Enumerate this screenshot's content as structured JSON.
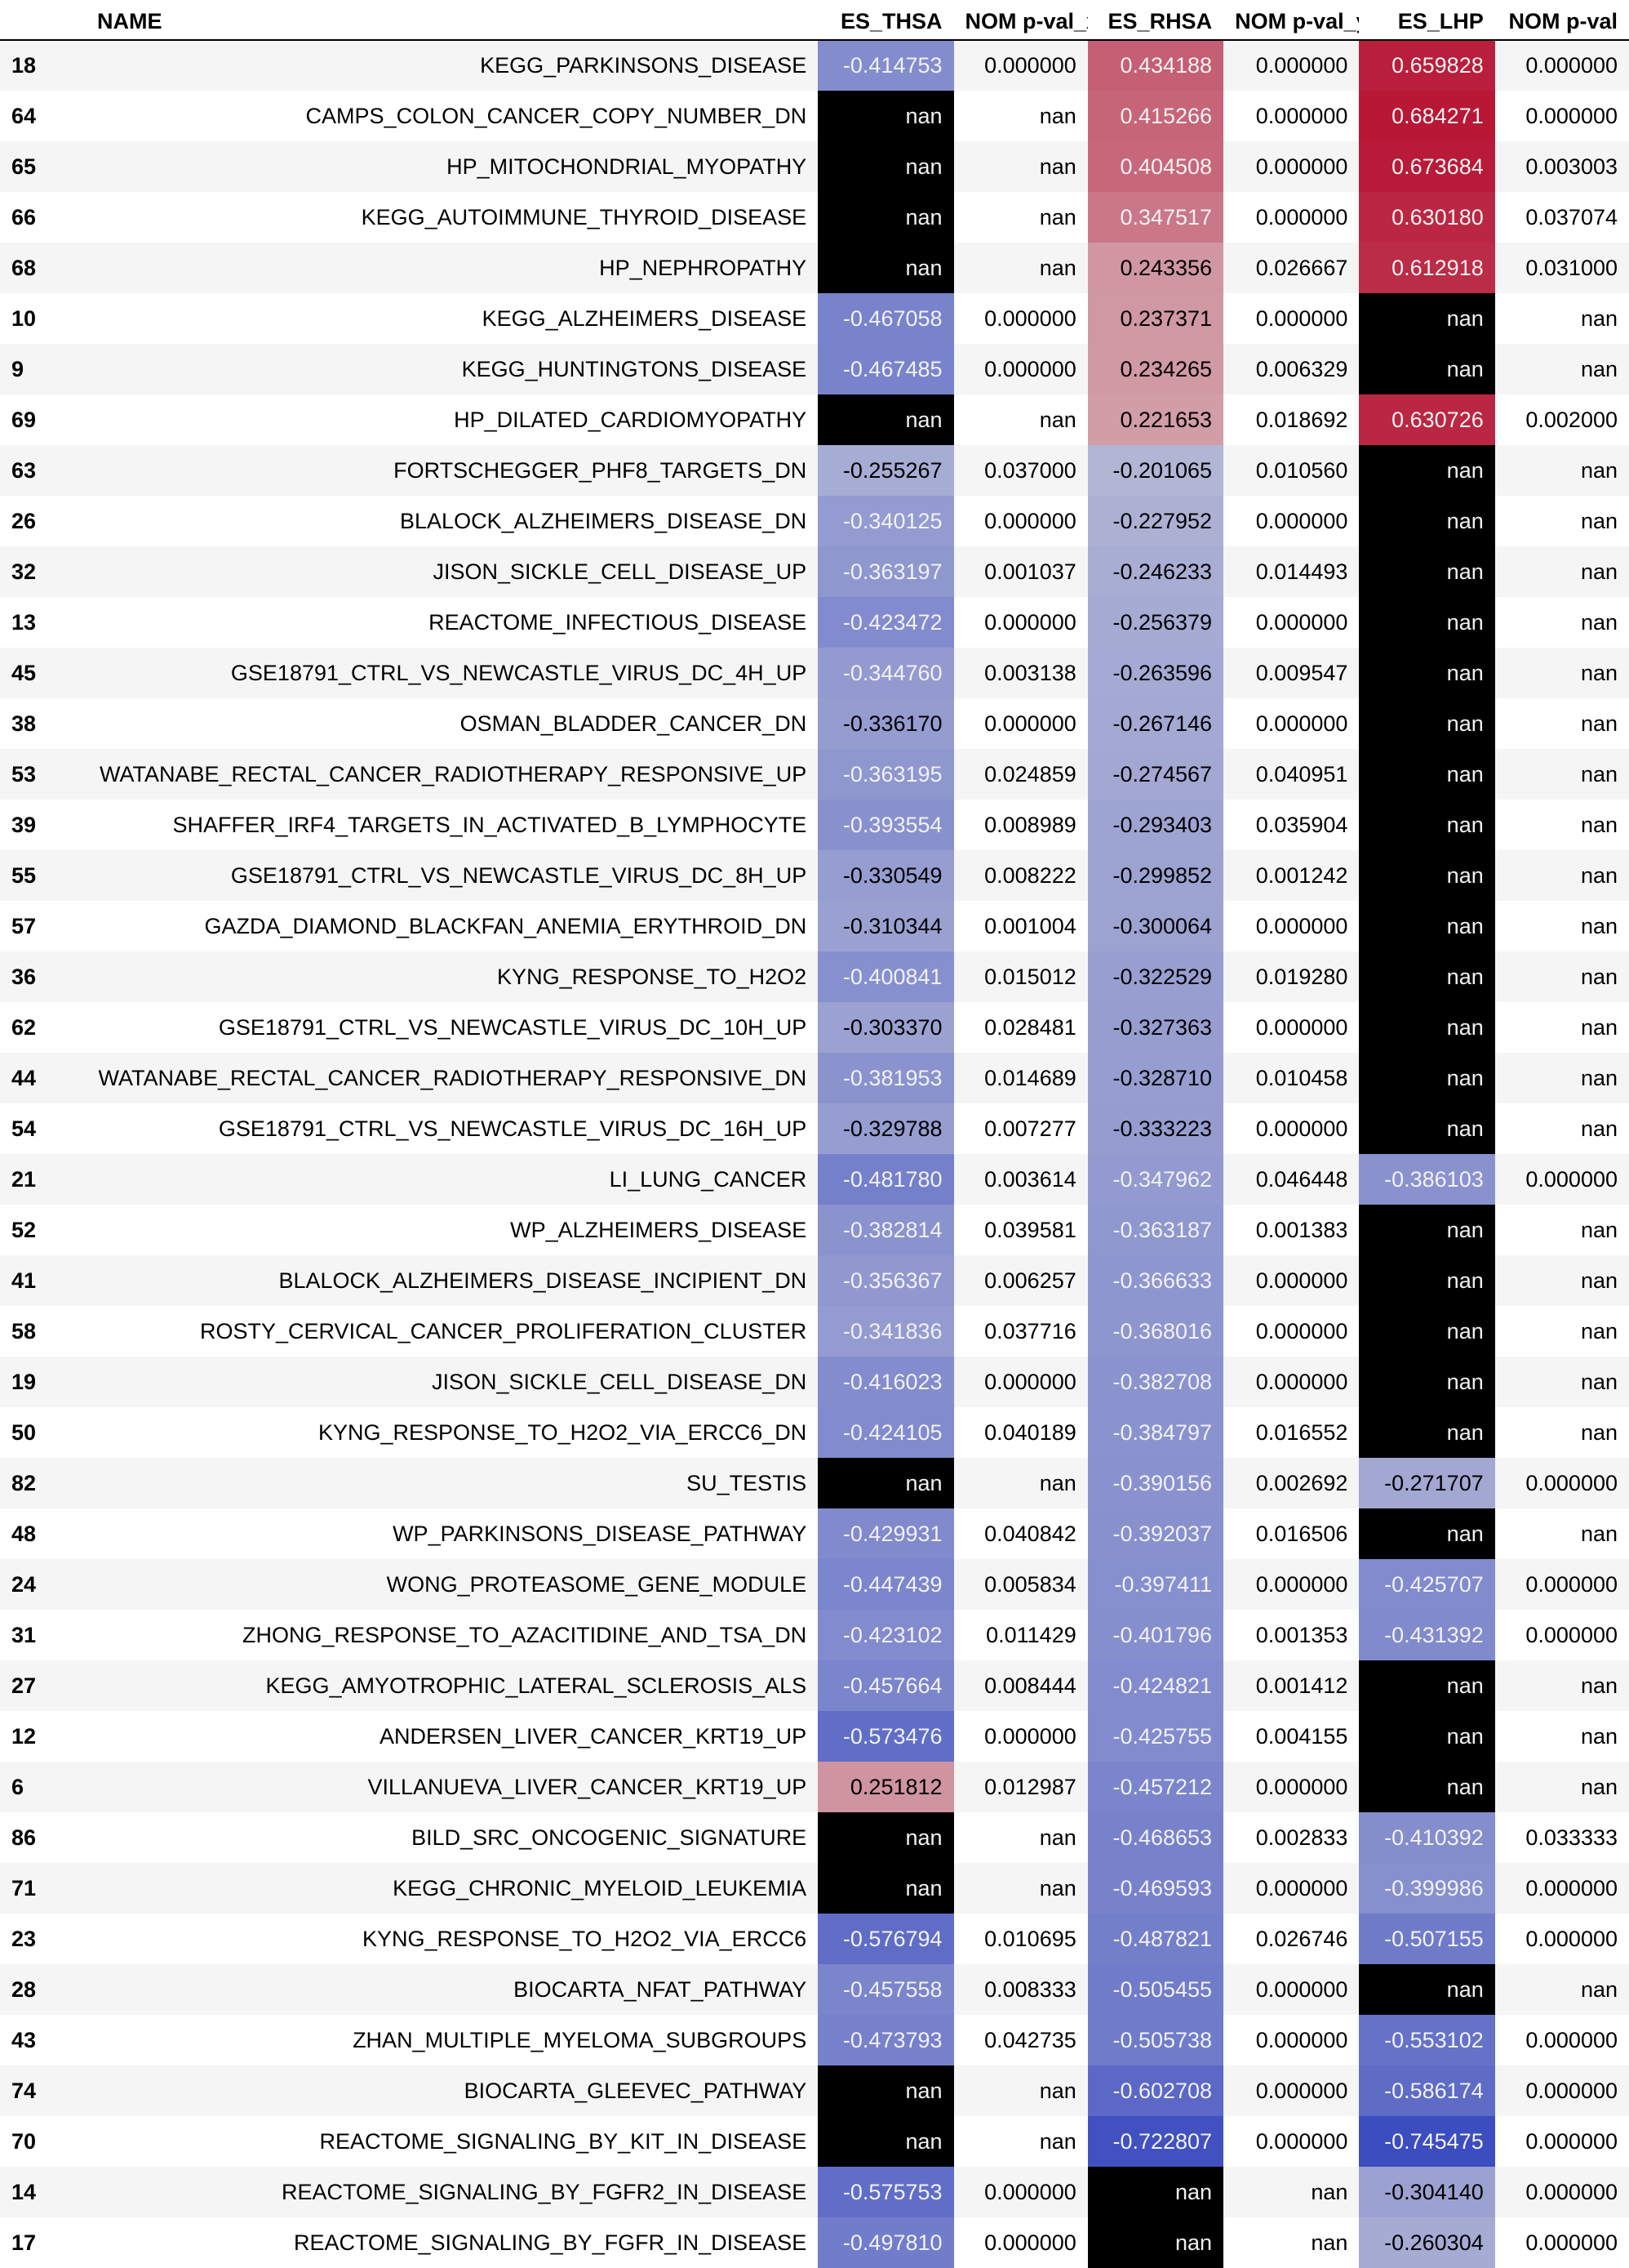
{
  "chart_data": {
    "type": "table",
    "columns": [
      "NAME",
      "ES_THSA",
      "NOM p-val_x",
      "ES_RHSA",
      "NOM p-val_y",
      "ES_LHP",
      "NOM p-val"
    ],
    "rows": [
      {
        "index": "18",
        "name": "KEGG_PARKINSONS_DISEASE",
        "es_thsa": "-0.414753",
        "p_x": "0.000000",
        "es_rhsa": "0.434188",
        "p_y": "0.000000",
        "es_lhp": "0.659828",
        "p": "0.000000"
      },
      {
        "index": "64",
        "name": "CAMPS_COLON_CANCER_COPY_NUMBER_DN",
        "es_thsa": "nan",
        "p_x": "nan",
        "es_rhsa": "0.415266",
        "p_y": "0.000000",
        "es_lhp": "0.684271",
        "p": "0.000000"
      },
      {
        "index": "65",
        "name": "HP_MITOCHONDRIAL_MYOPATHY",
        "es_thsa": "nan",
        "p_x": "nan",
        "es_rhsa": "0.404508",
        "p_y": "0.000000",
        "es_lhp": "0.673684",
        "p": "0.003003"
      },
      {
        "index": "66",
        "name": "KEGG_AUTOIMMUNE_THYROID_DISEASE",
        "es_thsa": "nan",
        "p_x": "nan",
        "es_rhsa": "0.347517",
        "p_y": "0.000000",
        "es_lhp": "0.630180",
        "p": "0.037074"
      },
      {
        "index": "68",
        "name": "HP_NEPHROPATHY",
        "es_thsa": "nan",
        "p_x": "nan",
        "es_rhsa": "0.243356",
        "p_y": "0.026667",
        "es_lhp": "0.612918",
        "p": "0.031000"
      },
      {
        "index": "10",
        "name": "KEGG_ALZHEIMERS_DISEASE",
        "es_thsa": "-0.467058",
        "p_x": "0.000000",
        "es_rhsa": "0.237371",
        "p_y": "0.000000",
        "es_lhp": "nan",
        "p": "nan"
      },
      {
        "index": "9",
        "name": "KEGG_HUNTINGTONS_DISEASE",
        "es_thsa": "-0.467485",
        "p_x": "0.000000",
        "es_rhsa": "0.234265",
        "p_y": "0.006329",
        "es_lhp": "nan",
        "p": "nan"
      },
      {
        "index": "69",
        "name": "HP_DILATED_CARDIOMYOPATHY",
        "es_thsa": "nan",
        "p_x": "nan",
        "es_rhsa": "0.221653",
        "p_y": "0.018692",
        "es_lhp": "0.630726",
        "p": "0.002000"
      },
      {
        "index": "63",
        "name": "FORTSCHEGGER_PHF8_TARGETS_DN",
        "es_thsa": "-0.255267",
        "p_x": "0.037000",
        "es_rhsa": "-0.201065",
        "p_y": "0.010560",
        "es_lhp": "nan",
        "p": "nan"
      },
      {
        "index": "26",
        "name": "BLALOCK_ALZHEIMERS_DISEASE_DN",
        "es_thsa": "-0.340125",
        "p_x": "0.000000",
        "es_rhsa": "-0.227952",
        "p_y": "0.000000",
        "es_lhp": "nan",
        "p": "nan"
      },
      {
        "index": "32",
        "name": "JISON_SICKLE_CELL_DISEASE_UP",
        "es_thsa": "-0.363197",
        "p_x": "0.001037",
        "es_rhsa": "-0.246233",
        "p_y": "0.014493",
        "es_lhp": "nan",
        "p": "nan"
      },
      {
        "index": "13",
        "name": "REACTOME_INFECTIOUS_DISEASE",
        "es_thsa": "-0.423472",
        "p_x": "0.000000",
        "es_rhsa": "-0.256379",
        "p_y": "0.000000",
        "es_lhp": "nan",
        "p": "nan"
      },
      {
        "index": "45",
        "name": "GSE18791_CTRL_VS_NEWCASTLE_VIRUS_DC_4H_UP",
        "es_thsa": "-0.344760",
        "p_x": "0.003138",
        "es_rhsa": "-0.263596",
        "p_y": "0.009547",
        "es_lhp": "nan",
        "p": "nan"
      },
      {
        "index": "38",
        "name": "OSMAN_BLADDER_CANCER_DN",
        "es_thsa": "-0.336170",
        "p_x": "0.000000",
        "es_rhsa": "-0.267146",
        "p_y": "0.000000",
        "es_lhp": "nan",
        "p": "nan"
      },
      {
        "index": "53",
        "name": "WATANABE_RECTAL_CANCER_RADIOTHERAPY_RESPONSIVE_UP",
        "es_thsa": "-0.363195",
        "p_x": "0.024859",
        "es_rhsa": "-0.274567",
        "p_y": "0.040951",
        "es_lhp": "nan",
        "p": "nan"
      },
      {
        "index": "39",
        "name": "SHAFFER_IRF4_TARGETS_IN_ACTIVATED_B_LYMPHOCYTE",
        "es_thsa": "-0.393554",
        "p_x": "0.008989",
        "es_rhsa": "-0.293403",
        "p_y": "0.035904",
        "es_lhp": "nan",
        "p": "nan"
      },
      {
        "index": "55",
        "name": "GSE18791_CTRL_VS_NEWCASTLE_VIRUS_DC_8H_UP",
        "es_thsa": "-0.330549",
        "p_x": "0.008222",
        "es_rhsa": "-0.299852",
        "p_y": "0.001242",
        "es_lhp": "nan",
        "p": "nan"
      },
      {
        "index": "57",
        "name": "GAZDA_DIAMOND_BLACKFAN_ANEMIA_ERYTHROID_DN",
        "es_thsa": "-0.310344",
        "p_x": "0.001004",
        "es_rhsa": "-0.300064",
        "p_y": "0.000000",
        "es_lhp": "nan",
        "p": "nan"
      },
      {
        "index": "36",
        "name": "KYNG_RESPONSE_TO_H2O2",
        "es_thsa": "-0.400841",
        "p_x": "0.015012",
        "es_rhsa": "-0.322529",
        "p_y": "0.019280",
        "es_lhp": "nan",
        "p": "nan"
      },
      {
        "index": "62",
        "name": "GSE18791_CTRL_VS_NEWCASTLE_VIRUS_DC_10H_UP",
        "es_thsa": "-0.303370",
        "p_x": "0.028481",
        "es_rhsa": "-0.327363",
        "p_y": "0.000000",
        "es_lhp": "nan",
        "p": "nan"
      },
      {
        "index": "44",
        "name": "WATANABE_RECTAL_CANCER_RADIOTHERAPY_RESPONSIVE_DN",
        "es_thsa": "-0.381953",
        "p_x": "0.014689",
        "es_rhsa": "-0.328710",
        "p_y": "0.010458",
        "es_lhp": "nan",
        "p": "nan"
      },
      {
        "index": "54",
        "name": "GSE18791_CTRL_VS_NEWCASTLE_VIRUS_DC_16H_UP",
        "es_thsa": "-0.329788",
        "p_x": "0.007277",
        "es_rhsa": "-0.333223",
        "p_y": "0.000000",
        "es_lhp": "nan",
        "p": "nan"
      },
      {
        "index": "21",
        "name": "LI_LUNG_CANCER",
        "es_thsa": "-0.481780",
        "p_x": "0.003614",
        "es_rhsa": "-0.347962",
        "p_y": "0.046448",
        "es_lhp": "-0.386103",
        "p": "0.000000"
      },
      {
        "index": "52",
        "name": "WP_ALZHEIMERS_DISEASE",
        "es_thsa": "-0.382814",
        "p_x": "0.039581",
        "es_rhsa": "-0.363187",
        "p_y": "0.001383",
        "es_lhp": "nan",
        "p": "nan"
      },
      {
        "index": "41",
        "name": "BLALOCK_ALZHEIMERS_DISEASE_INCIPIENT_DN",
        "es_thsa": "-0.356367",
        "p_x": "0.006257",
        "es_rhsa": "-0.366633",
        "p_y": "0.000000",
        "es_lhp": "nan",
        "p": "nan"
      },
      {
        "index": "58",
        "name": "ROSTY_CERVICAL_CANCER_PROLIFERATION_CLUSTER",
        "es_thsa": "-0.341836",
        "p_x": "0.037716",
        "es_rhsa": "-0.368016",
        "p_y": "0.000000",
        "es_lhp": "nan",
        "p": "nan"
      },
      {
        "index": "19",
        "name": "JISON_SICKLE_CELL_DISEASE_DN",
        "es_thsa": "-0.416023",
        "p_x": "0.000000",
        "es_rhsa": "-0.382708",
        "p_y": "0.000000",
        "es_lhp": "nan",
        "p": "nan"
      },
      {
        "index": "50",
        "name": "KYNG_RESPONSE_TO_H2O2_VIA_ERCC6_DN",
        "es_thsa": "-0.424105",
        "p_x": "0.040189",
        "es_rhsa": "-0.384797",
        "p_y": "0.016552",
        "es_lhp": "nan",
        "p": "nan"
      },
      {
        "index": "82",
        "name": "SU_TESTIS",
        "es_thsa": "nan",
        "p_x": "nan",
        "es_rhsa": "-0.390156",
        "p_y": "0.002692",
        "es_lhp": "-0.271707",
        "p": "0.000000"
      },
      {
        "index": "48",
        "name": "WP_PARKINSONS_DISEASE_PATHWAY",
        "es_thsa": "-0.429931",
        "p_x": "0.040842",
        "es_rhsa": "-0.392037",
        "p_y": "0.016506",
        "es_lhp": "nan",
        "p": "nan"
      },
      {
        "index": "24",
        "name": "WONG_PROTEASOME_GENE_MODULE",
        "es_thsa": "-0.447439",
        "p_x": "0.005834",
        "es_rhsa": "-0.397411",
        "p_y": "0.000000",
        "es_lhp": "-0.425707",
        "p": "0.000000"
      },
      {
        "index": "31",
        "name": "ZHONG_RESPONSE_TO_AZACITIDINE_AND_TSA_DN",
        "es_thsa": "-0.423102",
        "p_x": "0.011429",
        "es_rhsa": "-0.401796",
        "p_y": "0.001353",
        "es_lhp": "-0.431392",
        "p": "0.000000"
      },
      {
        "index": "27",
        "name": "KEGG_AMYOTROPHIC_LATERAL_SCLEROSIS_ALS",
        "es_thsa": "-0.457664",
        "p_x": "0.008444",
        "es_rhsa": "-0.424821",
        "p_y": "0.001412",
        "es_lhp": "nan",
        "p": "nan"
      },
      {
        "index": "12",
        "name": "ANDERSEN_LIVER_CANCER_KRT19_UP",
        "es_thsa": "-0.573476",
        "p_x": "0.000000",
        "es_rhsa": "-0.425755",
        "p_y": "0.004155",
        "es_lhp": "nan",
        "p": "nan"
      },
      {
        "index": "6",
        "name": "VILLANUEVA_LIVER_CANCER_KRT19_UP",
        "es_thsa": "0.251812",
        "p_x": "0.012987",
        "es_rhsa": "-0.457212",
        "p_y": "0.000000",
        "es_lhp": "nan",
        "p": "nan"
      },
      {
        "index": "86",
        "name": "BILD_SRC_ONCOGENIC_SIGNATURE",
        "es_thsa": "nan",
        "p_x": "nan",
        "es_rhsa": "-0.468653",
        "p_y": "0.002833",
        "es_lhp": "-0.410392",
        "p": "0.033333"
      },
      {
        "index": "71",
        "name": "KEGG_CHRONIC_MYELOID_LEUKEMIA",
        "es_thsa": "nan",
        "p_x": "nan",
        "es_rhsa": "-0.469593",
        "p_y": "0.000000",
        "es_lhp": "-0.399986",
        "p": "0.000000"
      },
      {
        "index": "23",
        "name": "KYNG_RESPONSE_TO_H2O2_VIA_ERCC6",
        "es_thsa": "-0.576794",
        "p_x": "0.010695",
        "es_rhsa": "-0.487821",
        "p_y": "0.026746",
        "es_lhp": "-0.507155",
        "p": "0.000000"
      },
      {
        "index": "28",
        "name": "BIOCARTA_NFAT_PATHWAY",
        "es_thsa": "-0.457558",
        "p_x": "0.008333",
        "es_rhsa": "-0.505455",
        "p_y": "0.000000",
        "es_lhp": "nan",
        "p": "nan"
      },
      {
        "index": "43",
        "name": "ZHAN_MULTIPLE_MYELOMA_SUBGROUPS",
        "es_thsa": "-0.473793",
        "p_x": "0.042735",
        "es_rhsa": "-0.505738",
        "p_y": "0.000000",
        "es_lhp": "-0.553102",
        "p": "0.000000"
      },
      {
        "index": "74",
        "name": "BIOCARTA_GLEEVEC_PATHWAY",
        "es_thsa": "nan",
        "p_x": "nan",
        "es_rhsa": "-0.602708",
        "p_y": "0.000000",
        "es_lhp": "-0.586174",
        "p": "0.000000"
      },
      {
        "index": "70",
        "name": "REACTOME_SIGNALING_BY_KIT_IN_DISEASE",
        "es_thsa": "nan",
        "p_x": "nan",
        "es_rhsa": "-0.722807",
        "p_y": "0.000000",
        "es_lhp": "-0.745475",
        "p": "0.000000"
      },
      {
        "index": "14",
        "name": "REACTOME_SIGNALING_BY_FGFR2_IN_DISEASE",
        "es_thsa": "-0.575753",
        "p_x": "0.000000",
        "es_rhsa": "nan",
        "p_y": "nan",
        "es_lhp": "-0.304140",
        "p": "0.000000"
      },
      {
        "index": "17",
        "name": "REACTOME_SIGNALING_BY_FGFR_IN_DISEASE",
        "es_thsa": "-0.497810",
        "p_x": "0.000000",
        "es_rhsa": "nan",
        "p_y": "nan",
        "es_lhp": "-0.260304",
        "p": "0.000000"
      }
    ],
    "colormap": {
      "type": "diverging",
      "range": [
        -0.75,
        0.75
      ],
      "nan_color": "#000000",
      "neg_end": "#3b4cc0",
      "mid": "#dddddd",
      "pos_end": "#b40426"
    }
  }
}
